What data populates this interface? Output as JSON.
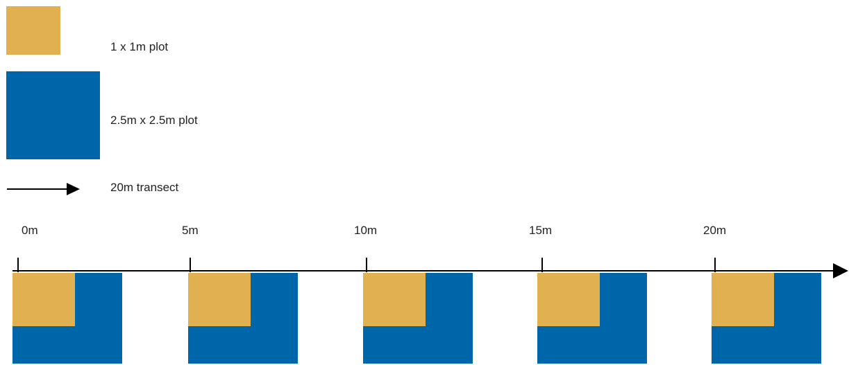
{
  "colors": {
    "small_plot": "#E1B050",
    "large_plot": "#0066AA",
    "line": "#000000"
  },
  "legend": {
    "small_plot_label": "1 x 1m plot",
    "large_plot_label": "2.5m x 2.5m plot",
    "transect_label": "20m transect"
  },
  "transect": {
    "positions": [
      "0m",
      "5m",
      "10m",
      "15m",
      "20m"
    ]
  }
}
